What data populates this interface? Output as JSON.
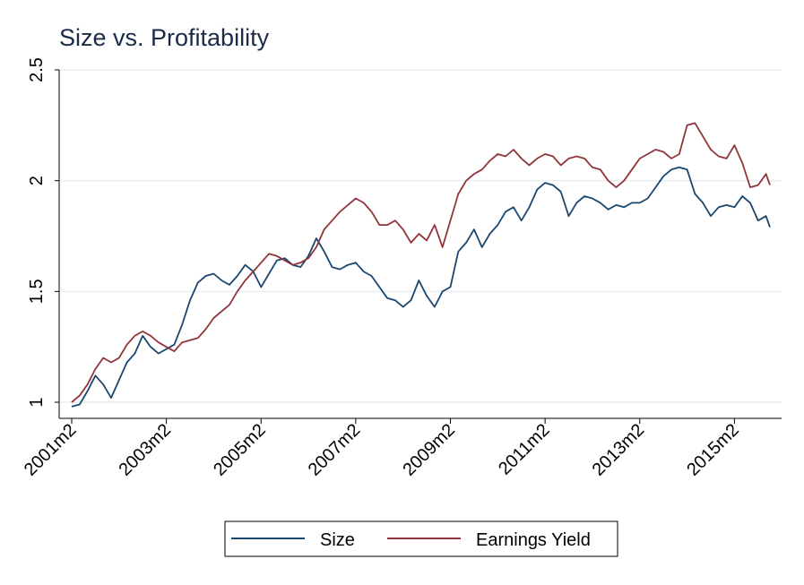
{
  "chart_data": {
    "type": "line",
    "title": "Size vs. Profitability",
    "xlabel": "",
    "ylabel": "",
    "ylim": [
      0.95,
      2.55
    ],
    "y_ticks": [
      {
        "value": 1,
        "label": "1"
      },
      {
        "value": 1.5,
        "label": "1.5"
      },
      {
        "value": 2,
        "label": "2"
      },
      {
        "value": 2.5,
        "label": "2.5"
      }
    ],
    "x_ticks": [
      "2001m2",
      "2003m2",
      "2005m2",
      "2007m2",
      "2009m2",
      "2011m2",
      "2013m2",
      "2015m2"
    ],
    "x_range": [
      "2001m2",
      "2015m11"
    ],
    "grid": true,
    "legend_position": "bottom",
    "colors": {
      "size": "#1a476f",
      "earnings_yield": "#90353b"
    },
    "series": [
      {
        "name": "Size",
        "color": "#1a476f",
        "points": [
          [
            "2001m2",
            0.98
          ],
          [
            "2001m4",
            0.99
          ],
          [
            "2001m6",
            1.05
          ],
          [
            "2001m8",
            1.12
          ],
          [
            "2001m10",
            1.08
          ],
          [
            "2001m12",
            1.02
          ],
          [
            "2002m2",
            1.1
          ],
          [
            "2002m4",
            1.18
          ],
          [
            "2002m6",
            1.22
          ],
          [
            "2002m8",
            1.3
          ],
          [
            "2002m10",
            1.25
          ],
          [
            "2002m12",
            1.22
          ],
          [
            "2003m2",
            1.24
          ],
          [
            "2003m4",
            1.26
          ],
          [
            "2003m6",
            1.35
          ],
          [
            "2003m8",
            1.46
          ],
          [
            "2003m10",
            1.54
          ],
          [
            "2003m12",
            1.57
          ],
          [
            "2004m2",
            1.58
          ],
          [
            "2004m4",
            1.55
          ],
          [
            "2004m6",
            1.53
          ],
          [
            "2004m8",
            1.57
          ],
          [
            "2004m10",
            1.62
          ],
          [
            "2004m12",
            1.59
          ],
          [
            "2005m2",
            1.52
          ],
          [
            "2005m4",
            1.58
          ],
          [
            "2005m6",
            1.64
          ],
          [
            "2005m8",
            1.65
          ],
          [
            "2005m10",
            1.62
          ],
          [
            "2005m12",
            1.61
          ],
          [
            "2006m2",
            1.66
          ],
          [
            "2006m4",
            1.74
          ],
          [
            "2006m6",
            1.68
          ],
          [
            "2006m8",
            1.61
          ],
          [
            "2006m10",
            1.6
          ],
          [
            "2006m12",
            1.62
          ],
          [
            "2007m2",
            1.63
          ],
          [
            "2007m4",
            1.59
          ],
          [
            "2007m6",
            1.57
          ],
          [
            "2007m8",
            1.52
          ],
          [
            "2007m10",
            1.47
          ],
          [
            "2007m12",
            1.46
          ],
          [
            "2008m2",
            1.43
          ],
          [
            "2008m4",
            1.46
          ],
          [
            "2008m6",
            1.55
          ],
          [
            "2008m8",
            1.48
          ],
          [
            "2008m10",
            1.43
          ],
          [
            "2008m12",
            1.5
          ],
          [
            "2009m2",
            1.52
          ],
          [
            "2009m4",
            1.68
          ],
          [
            "2009m6",
            1.72
          ],
          [
            "2009m8",
            1.78
          ],
          [
            "2009m10",
            1.7
          ],
          [
            "2009m12",
            1.76
          ],
          [
            "2010m2",
            1.8
          ],
          [
            "2010m4",
            1.86
          ],
          [
            "2010m6",
            1.88
          ],
          [
            "2010m8",
            1.82
          ],
          [
            "2010m10",
            1.88
          ],
          [
            "2010m12",
            1.96
          ],
          [
            "2011m2",
            1.99
          ],
          [
            "2011m4",
            1.98
          ],
          [
            "2011m6",
            1.95
          ],
          [
            "2011m8",
            1.84
          ],
          [
            "2011m10",
            1.9
          ],
          [
            "2011m12",
            1.93
          ],
          [
            "2012m2",
            1.92
          ],
          [
            "2012m4",
            1.9
          ],
          [
            "2012m6",
            1.87
          ],
          [
            "2012m8",
            1.89
          ],
          [
            "2012m10",
            1.88
          ],
          [
            "2012m12",
            1.9
          ],
          [
            "2013m2",
            1.9
          ],
          [
            "2013m4",
            1.92
          ],
          [
            "2013m6",
            1.97
          ],
          [
            "2013m8",
            2.02
          ],
          [
            "2013m10",
            2.05
          ],
          [
            "2013m12",
            2.06
          ],
          [
            "2014m2",
            2.05
          ],
          [
            "2014m4",
            1.94
          ],
          [
            "2014m6",
            1.9
          ],
          [
            "2014m8",
            1.84
          ],
          [
            "2014m10",
            1.88
          ],
          [
            "2014m12",
            1.89
          ],
          [
            "2015m2",
            1.88
          ],
          [
            "2015m4",
            1.93
          ],
          [
            "2015m6",
            1.9
          ],
          [
            "2015m8",
            1.82
          ],
          [
            "2015m10",
            1.84
          ],
          [
            "2015m11",
            1.79
          ]
        ]
      },
      {
        "name": "Earnings Yield",
        "color": "#90353b",
        "points": [
          [
            "2001m2",
            1.0
          ],
          [
            "2001m4",
            1.03
          ],
          [
            "2001m6",
            1.08
          ],
          [
            "2001m8",
            1.15
          ],
          [
            "2001m10",
            1.2
          ],
          [
            "2001m12",
            1.18
          ],
          [
            "2002m2",
            1.2
          ],
          [
            "2002m4",
            1.26
          ],
          [
            "2002m6",
            1.3
          ],
          [
            "2002m8",
            1.32
          ],
          [
            "2002m10",
            1.3
          ],
          [
            "2002m12",
            1.27
          ],
          [
            "2003m2",
            1.25
          ],
          [
            "2003m4",
            1.23
          ],
          [
            "2003m6",
            1.27
          ],
          [
            "2003m8",
            1.28
          ],
          [
            "2003m10",
            1.29
          ],
          [
            "2003m12",
            1.33
          ],
          [
            "2004m2",
            1.38
          ],
          [
            "2004m4",
            1.41
          ],
          [
            "2004m6",
            1.44
          ],
          [
            "2004m8",
            1.5
          ],
          [
            "2004m10",
            1.55
          ],
          [
            "2004m12",
            1.59
          ],
          [
            "2005m2",
            1.63
          ],
          [
            "2005m4",
            1.67
          ],
          [
            "2005m6",
            1.66
          ],
          [
            "2005m8",
            1.64
          ],
          [
            "2005m10",
            1.62
          ],
          [
            "2005m12",
            1.63
          ],
          [
            "2006m2",
            1.65
          ],
          [
            "2006m4",
            1.7
          ],
          [
            "2006m6",
            1.78
          ],
          [
            "2006m8",
            1.82
          ],
          [
            "2006m10",
            1.86
          ],
          [
            "2006m12",
            1.89
          ],
          [
            "2007m2",
            1.92
          ],
          [
            "2007m4",
            1.9
          ],
          [
            "2007m6",
            1.86
          ],
          [
            "2007m8",
            1.8
          ],
          [
            "2007m10",
            1.8
          ],
          [
            "2007m12",
            1.82
          ],
          [
            "2008m2",
            1.78
          ],
          [
            "2008m4",
            1.72
          ],
          [
            "2008m6",
            1.76
          ],
          [
            "2008m8",
            1.73
          ],
          [
            "2008m10",
            1.8
          ],
          [
            "2008m12",
            1.7
          ],
          [
            "2009m2",
            1.82
          ],
          [
            "2009m4",
            1.94
          ],
          [
            "2009m6",
            2.0
          ],
          [
            "2009m8",
            2.03
          ],
          [
            "2009m10",
            2.05
          ],
          [
            "2009m12",
            2.09
          ],
          [
            "2010m2",
            2.12
          ],
          [
            "2010m4",
            2.11
          ],
          [
            "2010m6",
            2.14
          ],
          [
            "2010m8",
            2.1
          ],
          [
            "2010m10",
            2.07
          ],
          [
            "2010m12",
            2.1
          ],
          [
            "2011m2",
            2.12
          ],
          [
            "2011m4",
            2.11
          ],
          [
            "2011m6",
            2.07
          ],
          [
            "2011m8",
            2.1
          ],
          [
            "2011m10",
            2.11
          ],
          [
            "2011m12",
            2.1
          ],
          [
            "2012m2",
            2.06
          ],
          [
            "2012m4",
            2.05
          ],
          [
            "2012m6",
            2.0
          ],
          [
            "2012m8",
            1.97
          ],
          [
            "2012m10",
            2.0
          ],
          [
            "2012m12",
            2.05
          ],
          [
            "2013m2",
            2.1
          ],
          [
            "2013m4",
            2.12
          ],
          [
            "2013m6",
            2.14
          ],
          [
            "2013m8",
            2.13
          ],
          [
            "2013m10",
            2.1
          ],
          [
            "2013m12",
            2.12
          ],
          [
            "2014m2",
            2.25
          ],
          [
            "2014m4",
            2.26
          ],
          [
            "2014m6",
            2.2
          ],
          [
            "2014m8",
            2.14
          ],
          [
            "2014m10",
            2.11
          ],
          [
            "2014m12",
            2.1
          ],
          [
            "2015m2",
            2.16
          ],
          [
            "2015m4",
            2.08
          ],
          [
            "2015m6",
            1.97
          ],
          [
            "2015m8",
            1.98
          ],
          [
            "2015m10",
            2.03
          ],
          [
            "2015m11",
            1.98
          ]
        ]
      }
    ]
  }
}
